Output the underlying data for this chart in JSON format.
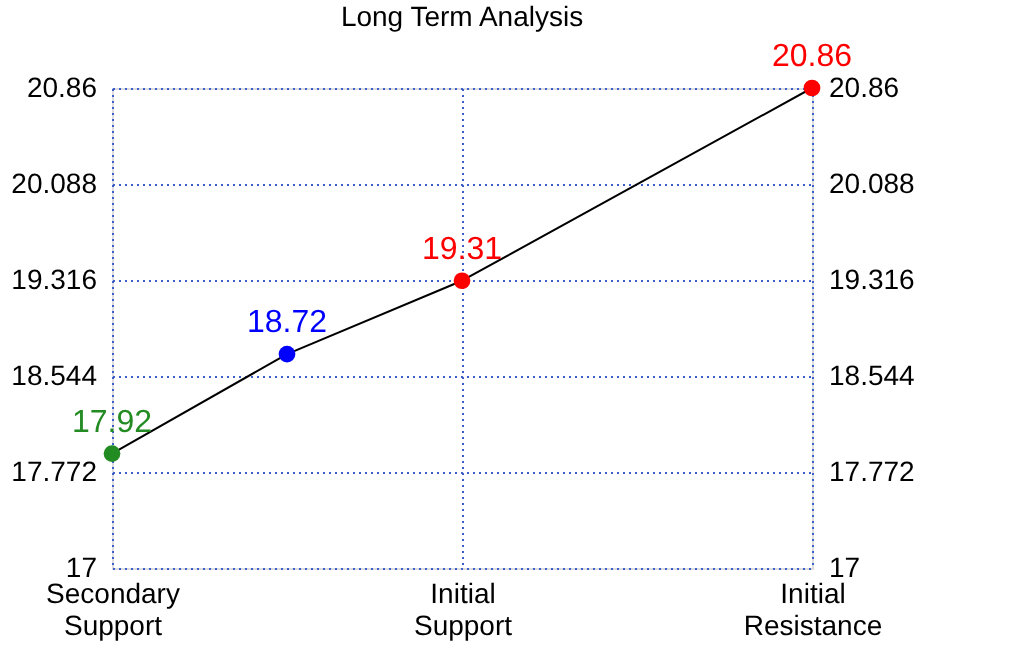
{
  "chart_data": {
    "type": "line",
    "title": "Long Term Analysis",
    "categories": [
      "Secondary Support",
      null,
      "Initial Support",
      null,
      "Initial Resistance"
    ],
    "series": [
      {
        "color": "#000000",
        "values": [
          17.92,
          18.72,
          19.31,
          null,
          20.86
        ],
        "colors": [
          "#228b22",
          "#0000ff",
          "#ff0000",
          null,
          "#ff0000"
        ]
      }
    ],
    "ylim": [
      17,
      20.86
    ],
    "yticks": [
      17,
      17.772,
      18.544,
      19.316,
      20.088,
      20.86
    ],
    "y2lim": [
      17,
      20.86
    ],
    "y2ticks": [
      17,
      17.772,
      18.544,
      19.316,
      20.088,
      20.86
    ],
    "data_labels": true,
    "marker": "circle",
    "grid": true
  }
}
